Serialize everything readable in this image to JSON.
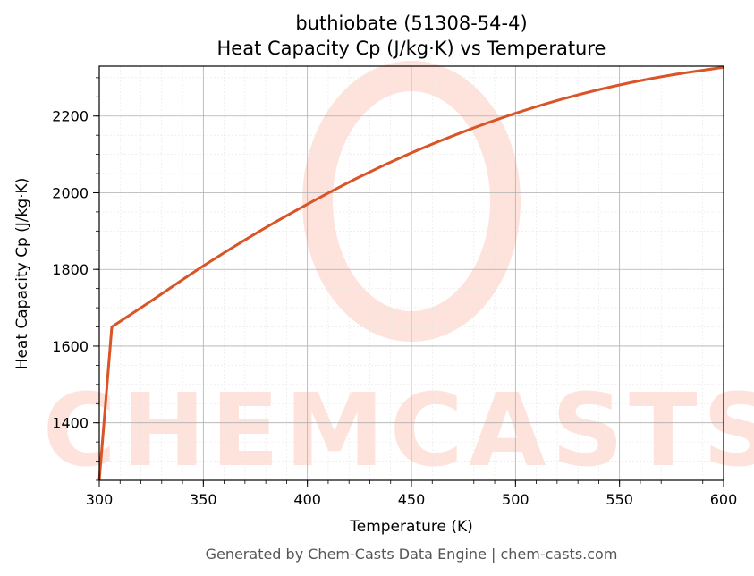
{
  "chart_data": {
    "type": "line",
    "title": "buthiobate (51308-54-4)",
    "subtitle": "Heat Capacity Cp (J/kg·K) vs Temperature",
    "xlabel": "Temperature (K)",
    "ylabel": "Heat Capacity Cp (J/kg·K)",
    "xlim": [
      300,
      600
    ],
    "ylim": [
      1250,
      2330
    ],
    "x_ticks": [
      300,
      350,
      400,
      450,
      500,
      550,
      600
    ],
    "y_ticks": [
      1400,
      1600,
      1800,
      2000,
      2200
    ],
    "grid": true,
    "series": [
      {
        "color": "#d95427",
        "x": [
          300,
          306,
          325,
          350,
          375,
          400,
          425,
          450,
          475,
          500,
          525,
          550,
          575,
          600
        ],
        "values": [
          1250,
          1650,
          1718,
          1809,
          1893,
          1970,
          2041,
          2104,
          2159,
          2207,
          2248,
          2281,
          2307,
          2327
        ]
      }
    ]
  },
  "watermark": {
    "text": "CHEMCASTS",
    "color": "#fde3dc"
  },
  "footer": "Generated by Chem-Casts Data Engine | chem-casts.com"
}
